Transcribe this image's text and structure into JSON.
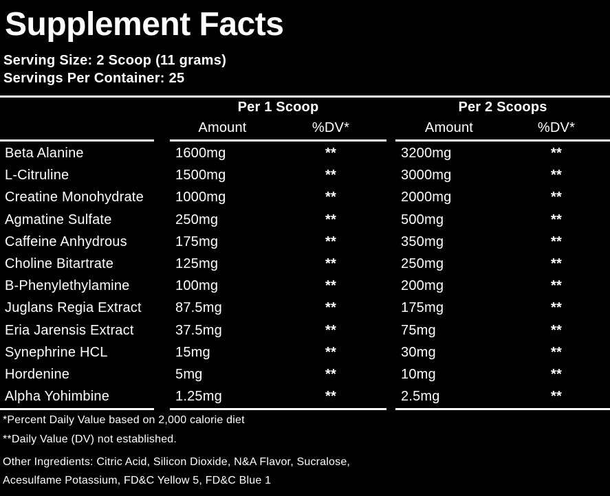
{
  "label": {
    "title": "Supplement Facts",
    "serving_size": "Serving Size: 2 Scoop (11 grams)",
    "servings_per_container": "Servings Per Container: 25",
    "columns": {
      "group1": "Per 1 Scoop",
      "group2": "Per 2 Scoops",
      "amount": "Amount",
      "dv": "%DV*"
    },
    "rows": [
      {
        "name": "Beta Alanine",
        "amount1": "1600mg",
        "dv1": "**",
        "amount2": "3200mg",
        "dv2": "**"
      },
      {
        "name": "L-Citruline",
        "amount1": "1500mg",
        "dv1": "**",
        "amount2": "3000mg",
        "dv2": "**"
      },
      {
        "name": "Creatine Monohydrate",
        "amount1": "1000mg",
        "dv1": "**",
        "amount2": "2000mg",
        "dv2": "**"
      },
      {
        "name": "Agmatine Sulfate",
        "amount1": "250mg",
        "dv1": "**",
        "amount2": "500mg",
        "dv2": "**"
      },
      {
        "name": "Caffeine Anhydrous",
        "amount1": "175mg",
        "dv1": "**",
        "amount2": "350mg",
        "dv2": "**"
      },
      {
        "name": "Choline Bitartrate",
        "amount1": "125mg",
        "dv1": "**",
        "amount2": "250mg",
        "dv2": "**"
      },
      {
        "name": "B-Phenylethylamine",
        "amount1": "100mg",
        "dv1": "**",
        "amount2": "200mg",
        "dv2": "**"
      },
      {
        "name": "Juglans Regia Extract",
        "amount1": "87.5mg",
        "dv1": "**",
        "amount2": "175mg",
        "dv2": "**"
      },
      {
        "name": "Eria Jarensis Extract",
        "amount1": "37.5mg",
        "dv1": "**",
        "amount2": "75mg",
        "dv2": "**"
      },
      {
        "name": "Synephrine HCL",
        "amount1": "15mg",
        "dv1": "**",
        "amount2": "30mg",
        "dv2": "**"
      },
      {
        "name": "Hordenine",
        "amount1": "5mg",
        "dv1": "**",
        "amount2": "10mg",
        "dv2": "**"
      },
      {
        "name": "Alpha Yohimbine",
        "amount1": "1.25mg",
        "dv1": "**",
        "amount2": "2.5mg",
        "dv2": "**"
      }
    ],
    "footnotes": [
      "*Percent Daily Value based on 2,000 calorie diet",
      "**Daily Value (DV) not established.",
      "Other Ingredients: Citric Acid, Silicon Dioxide, N&A Flavor, Sucralose,",
      "Acesulfame Potassium, FD&C Yellow 5, FD&C Blue 1"
    ],
    "colors": {
      "background": "#000000",
      "text": "#ffffff",
      "rule": "#ffffff"
    }
  }
}
